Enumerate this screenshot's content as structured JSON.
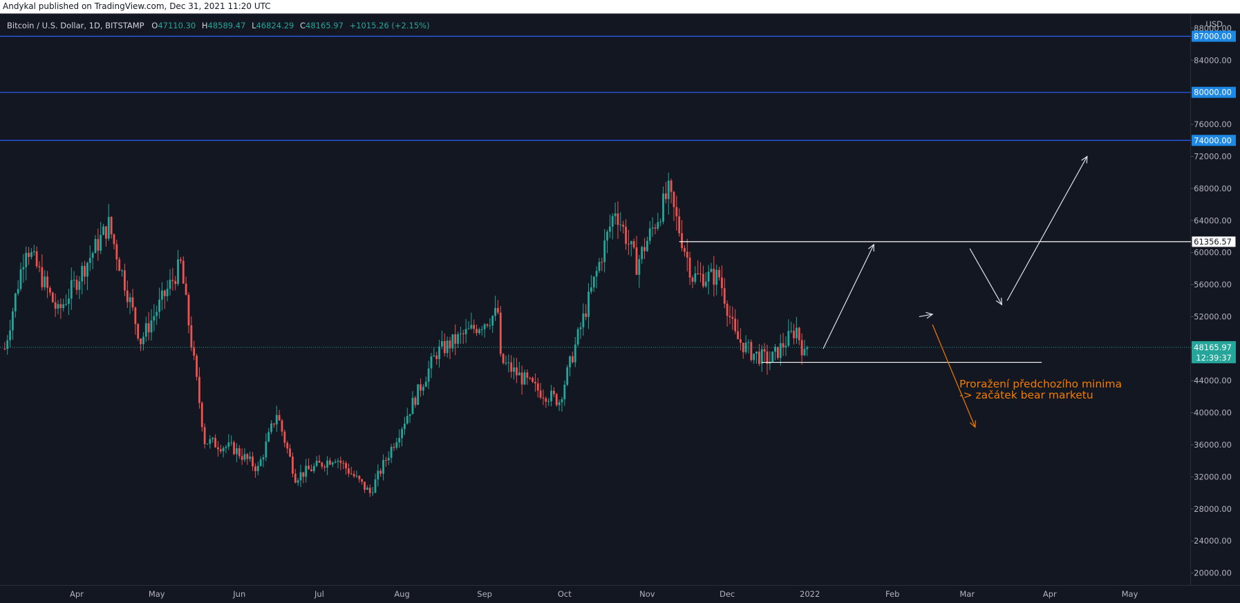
{
  "header": {
    "publish_text": "Andykal published on TradingView.com, Dec 31, 2021 11:20 UTC"
  },
  "legend": {
    "symbol": "Bitcoin / U.S. Dollar, 1D, BITSTAMP",
    "o_label": "O",
    "o_value": "47110.30",
    "h_label": "H",
    "h_value": "48589.47",
    "l_label": "L",
    "l_value": "46824.29",
    "c_label": "C",
    "c_value": "48165.97",
    "change": "+1015.26 (+2.15%)"
  },
  "currency": "USD",
  "colors": {
    "background": "#131722",
    "up": "#26a69a",
    "down": "#ef5350",
    "blue_level": "#2962ff",
    "annotation": "#f57c00",
    "text": "#b2b5be"
  },
  "chart_data": {
    "type": "candlestick",
    "y_scale": "linear",
    "ylim": [
      18500,
      89800
    ],
    "y_ticks": [
      "20000.00",
      "24000.00",
      "28000.00",
      "32000.00",
      "36000.00",
      "40000.00",
      "44000.00",
      "52000.00",
      "56000.00",
      "60000.00",
      "64000.00",
      "68000.00",
      "72000.00",
      "76000.00",
      "84000.00",
      "88000.00"
    ],
    "x_labels": [
      {
        "label": "Apr",
        "date": "2021-04-01"
      },
      {
        "label": "May",
        "date": "2021-05-01"
      },
      {
        "label": "Jun",
        "date": "2021-06-01"
      },
      {
        "label": "Jul",
        "date": "2021-07-01"
      },
      {
        "label": "Aug",
        "date": "2021-08-01"
      },
      {
        "label": "Sep",
        "date": "2021-09-01"
      },
      {
        "label": "Oct",
        "date": "2021-10-01"
      },
      {
        "label": "Nov",
        "date": "2021-11-01"
      },
      {
        "label": "Dec",
        "date": "2021-12-01"
      },
      {
        "label": "2022",
        "date": "2022-01-01"
      },
      {
        "label": "Feb",
        "date": "2022-02-01"
      },
      {
        "label": "Mar",
        "date": "2022-03-01"
      },
      {
        "label": "Apr",
        "date": "2022-04-01"
      },
      {
        "label": "May",
        "date": "2022-05-01"
      }
    ],
    "keypoints": [
      [
        "2021-03-05",
        48000
      ],
      [
        "2021-03-13",
        61000
      ],
      [
        "2021-03-25",
        52500
      ],
      [
        "2021-04-13",
        63500
      ],
      [
        "2021-04-25",
        49000
      ],
      [
        "2021-05-10",
        58500
      ],
      [
        "2021-05-19",
        36500
      ],
      [
        "2021-05-30",
        35500
      ],
      [
        "2021-06-08",
        33000
      ],
      [
        "2021-06-15",
        40000
      ],
      [
        "2021-06-22",
        32000
      ],
      [
        "2021-07-07",
        34500
      ],
      [
        "2021-07-20",
        30000
      ],
      [
        "2021-08-14",
        47500
      ],
      [
        "2021-09-06",
        52500
      ],
      [
        "2021-09-07",
        46500
      ],
      [
        "2021-09-20",
        43000
      ],
      [
        "2021-09-29",
        41500
      ],
      [
        "2021-10-20",
        65500
      ],
      [
        "2021-10-28",
        58500
      ],
      [
        "2021-11-09",
        67500
      ],
      [
        "2021-11-18",
        57000
      ],
      [
        "2021-11-28",
        57000
      ],
      [
        "2021-12-04",
        49500
      ],
      [
        "2021-12-10",
        47500
      ],
      [
        "2021-12-17",
        46500
      ],
      [
        "2021-12-27",
        50500
      ],
      [
        "2021-12-30",
        47100
      ],
      [
        "2021-12-31",
        48166
      ]
    ],
    "last_price": "48165.97",
    "countdown": "12:39:37",
    "levels": [
      {
        "value": 87000,
        "label": "87000.00",
        "style": "blue"
      },
      {
        "value": 80000,
        "label": "80000.00",
        "style": "blue"
      },
      {
        "value": 74000,
        "label": "74000.00",
        "style": "blue"
      },
      {
        "value": 61356.57,
        "label": "61356.57",
        "style": "white",
        "from": "2021-11-13"
      },
      {
        "value": 46300,
        "style": "white",
        "from": "2021-12-14",
        "to": "2022-03-29"
      }
    ],
    "projection_path": [
      [
        "2022-01-06",
        48000
      ],
      [
        "2022-01-25",
        61000
      ],
      [
        "2022-02-11",
        52000
      ],
      [
        "2022-02-16",
        52300
      ],
      [
        "2022-03-02",
        60500
      ],
      [
        "2022-03-14",
        53500
      ],
      [
        "2022-03-16",
        54000
      ],
      [
        "2022-04-15",
        72000
      ]
    ],
    "bear_arrow": [
      [
        "2022-02-16",
        51000
      ],
      [
        "2022-03-04",
        38200
      ]
    ],
    "annotation_lines": [
      "Proražení předchozího minima",
      "-> začátek bear marketu"
    ]
  }
}
